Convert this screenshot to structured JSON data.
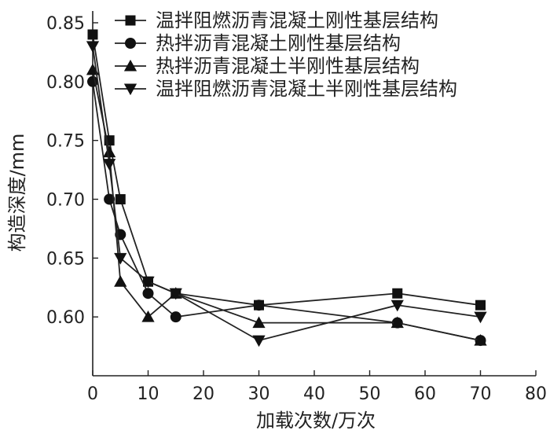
{
  "chart_data": {
    "type": "line",
    "xlabel": "加载次数/万次",
    "ylabel": "构造深度/mm",
    "xlim": [
      0,
      80
    ],
    "ylim": [
      0.55,
      0.86
    ],
    "xticks": [
      0,
      10,
      20,
      30,
      40,
      50,
      60,
      70,
      80
    ],
    "yticks": [
      0.6,
      0.65,
      0.7,
      0.75,
      0.8,
      0.85
    ],
    "ytick_labels": [
      "0.60",
      "0.65",
      "0.70",
      "0.75",
      "0.80",
      "0.85"
    ],
    "grid": false,
    "legend_position": "top-right",
    "series": [
      {
        "name": "温拌阻燃沥青混凝土刚性基层结构",
        "marker": "square",
        "x": [
          0,
          3,
          5,
          10,
          15,
          30,
          55,
          70
        ],
        "values": [
          0.84,
          0.75,
          0.7,
          0.63,
          0.62,
          0.61,
          0.62,
          0.61
        ]
      },
      {
        "name": "热拌沥青混凝土刚性基层结构",
        "marker": "circle",
        "x": [
          0,
          3,
          5,
          10,
          15,
          30,
          55,
          70
        ],
        "values": [
          0.8,
          0.7,
          0.67,
          0.62,
          0.6,
          0.61,
          0.595,
          0.58
        ]
      },
      {
        "name": "热拌沥青混凝土半刚性基层结构",
        "marker": "triangle-up",
        "x": [
          0,
          3,
          5,
          10,
          15,
          30,
          55,
          70
        ],
        "values": [
          0.81,
          0.74,
          0.63,
          0.6,
          0.62,
          0.595,
          0.595,
          0.58
        ]
      },
      {
        "name": "温拌阻燃沥青混凝土半刚性基层结构",
        "marker": "triangle-down",
        "x": [
          0,
          3,
          5,
          10,
          15,
          30,
          55,
          70
        ],
        "values": [
          0.83,
          0.73,
          0.65,
          0.63,
          0.62,
          0.58,
          0.61,
          0.6
        ]
      }
    ]
  }
}
